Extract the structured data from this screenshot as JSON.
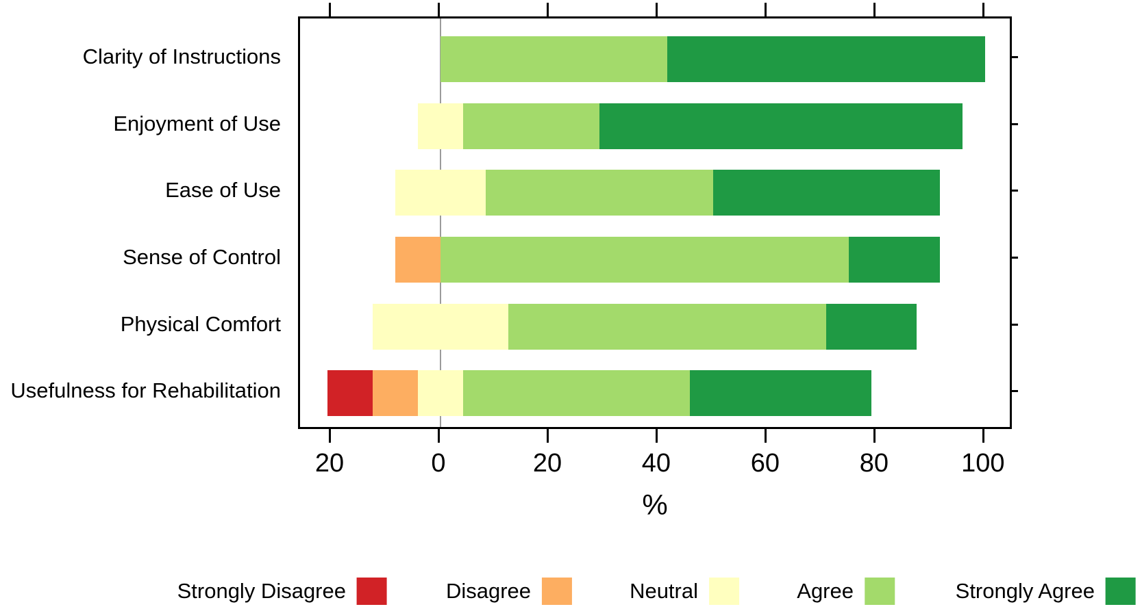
{
  "figure": {
    "kind": "diverging-likert-bar-chart",
    "background": "#ffffff",
    "frame_color": "#000000",
    "zero_line_color": "#9b9b9b"
  },
  "axis": {
    "xlabel": "%"
  },
  "chart_data": {
    "type": "bar",
    "subtype": "diverging-stacked-likert-horizontal",
    "title": "",
    "xlabel": "%",
    "ylabel": "",
    "xlim": [
      -25.8,
      105.3
    ],
    "x_ticks": [
      -20,
      0,
      20,
      40,
      60,
      80,
      100
    ],
    "x_tick_labels": [
      "20",
      "0",
      "20",
      "40",
      "60",
      "80",
      "100"
    ],
    "grid": "zero-reference-line-only",
    "neutral_centered_on_zero": true,
    "legend_position": "bottom",
    "categories": [
      "Clarity of Instructions",
      "Enjoyment of Use",
      "Ease of Use",
      "Sense of Control",
      "Physical Comfort",
      "Usefulness for Rehabilitation"
    ],
    "levels": [
      "Strongly Disagree",
      "Disagree",
      "Neutral",
      "Agree",
      "Strongly Agree"
    ],
    "colors": {
      "Strongly Disagree": "#d12226",
      "Disagree": "#fdae61",
      "Neutral": "#ffffbf",
      "Agree": "#a3da6b",
      "Strongly Agree": "#1f9a44"
    },
    "series": [
      {
        "name": "Strongly Disagree",
        "values": [
          0,
          0,
          0,
          0,
          0,
          8.3
        ]
      },
      {
        "name": "Disagree",
        "values": [
          0,
          0,
          0,
          8.3,
          0,
          8.3
        ]
      },
      {
        "name": "Neutral",
        "values": [
          0,
          8.3,
          16.7,
          0,
          25,
          8.3
        ]
      },
      {
        "name": "Agree",
        "values": [
          41.7,
          25,
          41.7,
          75,
          58.3,
          41.7
        ]
      },
      {
        "name": "Strongly Agree",
        "values": [
          58.3,
          66.7,
          41.7,
          16.7,
          16.7,
          33.3
        ]
      }
    ]
  },
  "legend": {
    "items": [
      {
        "label": "Strongly Disagree",
        "color": "#d12226"
      },
      {
        "label": "Disagree",
        "color": "#fdae61"
      },
      {
        "label": "Neutral",
        "color": "#ffffbf"
      },
      {
        "label": "Agree",
        "color": "#a3da6b"
      },
      {
        "label": "Strongly Agree",
        "color": "#1f9a44"
      }
    ]
  }
}
